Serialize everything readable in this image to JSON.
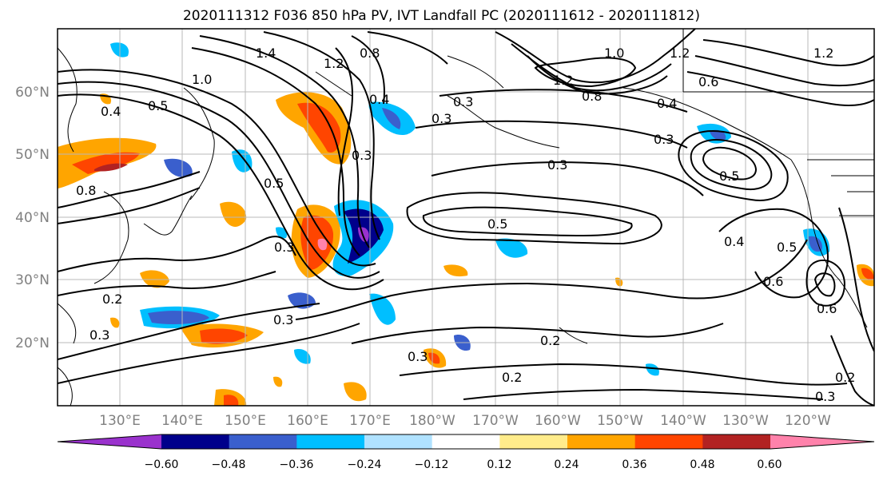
{
  "title": "2020111312 F036 850 hPa PV, IVT Landfall PC (2020111612 - 2020111812)",
  "map": {
    "longitude_labels": [
      "130°E",
      "140°E",
      "150°E",
      "160°E",
      "170°E",
      "180°W",
      "170°W",
      "160°W",
      "150°W",
      "140°W",
      "130°W",
      "120°W"
    ],
    "latitude_labels": [
      "60°N",
      "50°N",
      "40°N",
      "30°N",
      "20°N"
    ],
    "contour_labels": [
      "1.4",
      "1.2",
      "0.8",
      "1.0",
      "1.2",
      "1.2",
      "0.8",
      "0.6",
      "1.2",
      "1.0",
      "0.5",
      "0.4",
      "0.4",
      "0.3",
      "0.3",
      "0.3",
      "0.5",
      "0.3",
      "0.4",
      "0.3",
      "0.8",
      "0.5",
      "0.3",
      "0.5",
      "0.4",
      "0.5",
      "0.6",
      "0.2",
      "0.3",
      "0.3",
      "0.2",
      "0.2",
      "0.2",
      "0.3",
      "0.6",
      "0.3"
    ]
  },
  "colorbar": {
    "colors": [
      "#9a32cd",
      "#00008b",
      "#3a5fcd",
      "#00bfff",
      "#b0e2ff",
      "#ffffff",
      "#ffec8b",
      "#ffa500",
      "#ff4500",
      "#b22222",
      "#ff82ab"
    ],
    "tick_labels": [
      "−0.60",
      "−0.48",
      "−0.36",
      "−0.24",
      "−0.12",
      "0.12",
      "0.24",
      "0.36",
      "0.48",
      "0.60"
    ]
  }
}
